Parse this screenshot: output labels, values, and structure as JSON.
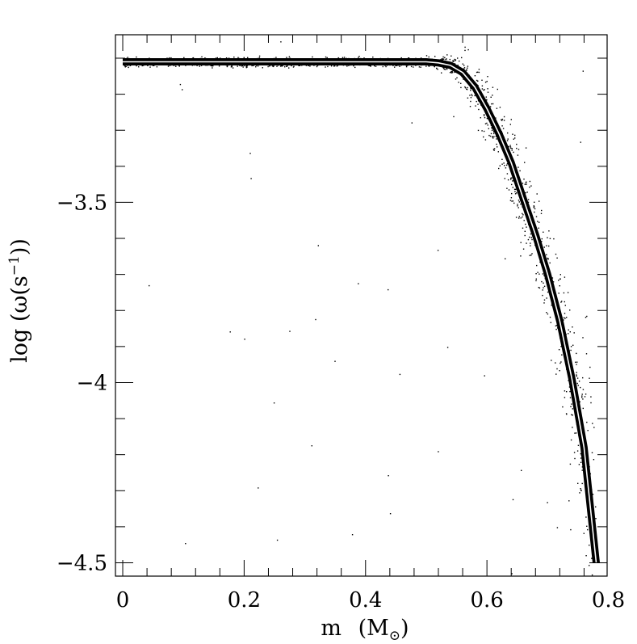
{
  "chart_data": {
    "type": "scatter",
    "title": "",
    "xlabel_main": "m",
    "xlabel_unit_open": "(M",
    "xlabel_unit_sub": "⊙",
    "xlabel_unit_close": ")",
    "ylabel_main": "log (ω(s",
    "ylabel_sup": "−1",
    "ylabel_close": "))",
    "xlim": [
      -0.012,
      0.798
    ],
    "ylim": [
      -4.537,
      -3.035
    ],
    "x_ticks": [
      {
        "value": 0,
        "label": "0"
      },
      {
        "value": 0.2,
        "label": "0.2"
      },
      {
        "value": 0.4,
        "label": "0.4"
      },
      {
        "value": 0.6,
        "label": "0.6"
      },
      {
        "value": 0.8,
        "label": "0.8"
      }
    ],
    "y_ticks": [
      {
        "value": -3.5,
        "label": "−3.5"
      },
      {
        "value": -4,
        "label": "−4"
      },
      {
        "value": -4.5,
        "label": "−4.5"
      }
    ],
    "x_minor_step": 0.04,
    "y_minor_step": 0.1,
    "grid": false,
    "series": [
      {
        "style": "scattered points around curve",
        "color": "#000000",
        "x": [
          0,
          0.1,
          0.2,
          0.3,
          0.4,
          0.5,
          0.52,
          0.54,
          0.56,
          0.58,
          0.6,
          0.62,
          0.64,
          0.66,
          0.68,
          0.7,
          0.72,
          0.74,
          0.76,
          0.78
        ],
        "y": [
          -3.11,
          -3.11,
          -3.11,
          -3.11,
          -3.11,
          -3.11,
          -3.113,
          -3.12,
          -3.14,
          -3.18,
          -3.24,
          -3.31,
          -3.39,
          -3.49,
          -3.59,
          -3.7,
          -3.83,
          -3.99,
          -4.18,
          -4.5
        ]
      },
      {
        "style": "white line",
        "color": "#ffffff",
        "x": [
          0,
          0.1,
          0.2,
          0.3,
          0.4,
          0.5,
          0.52,
          0.54,
          0.56,
          0.58,
          0.6,
          0.62,
          0.64,
          0.66,
          0.68,
          0.7,
          0.72,
          0.74,
          0.76,
          0.78
        ],
        "y": [
          -3.11,
          -3.11,
          -3.11,
          -3.11,
          -3.11,
          -3.11,
          -3.113,
          -3.12,
          -3.14,
          -3.18,
          -3.24,
          -3.31,
          -3.39,
          -3.49,
          -3.59,
          -3.7,
          -3.83,
          -3.99,
          -4.18,
          -4.5
        ]
      }
    ]
  }
}
